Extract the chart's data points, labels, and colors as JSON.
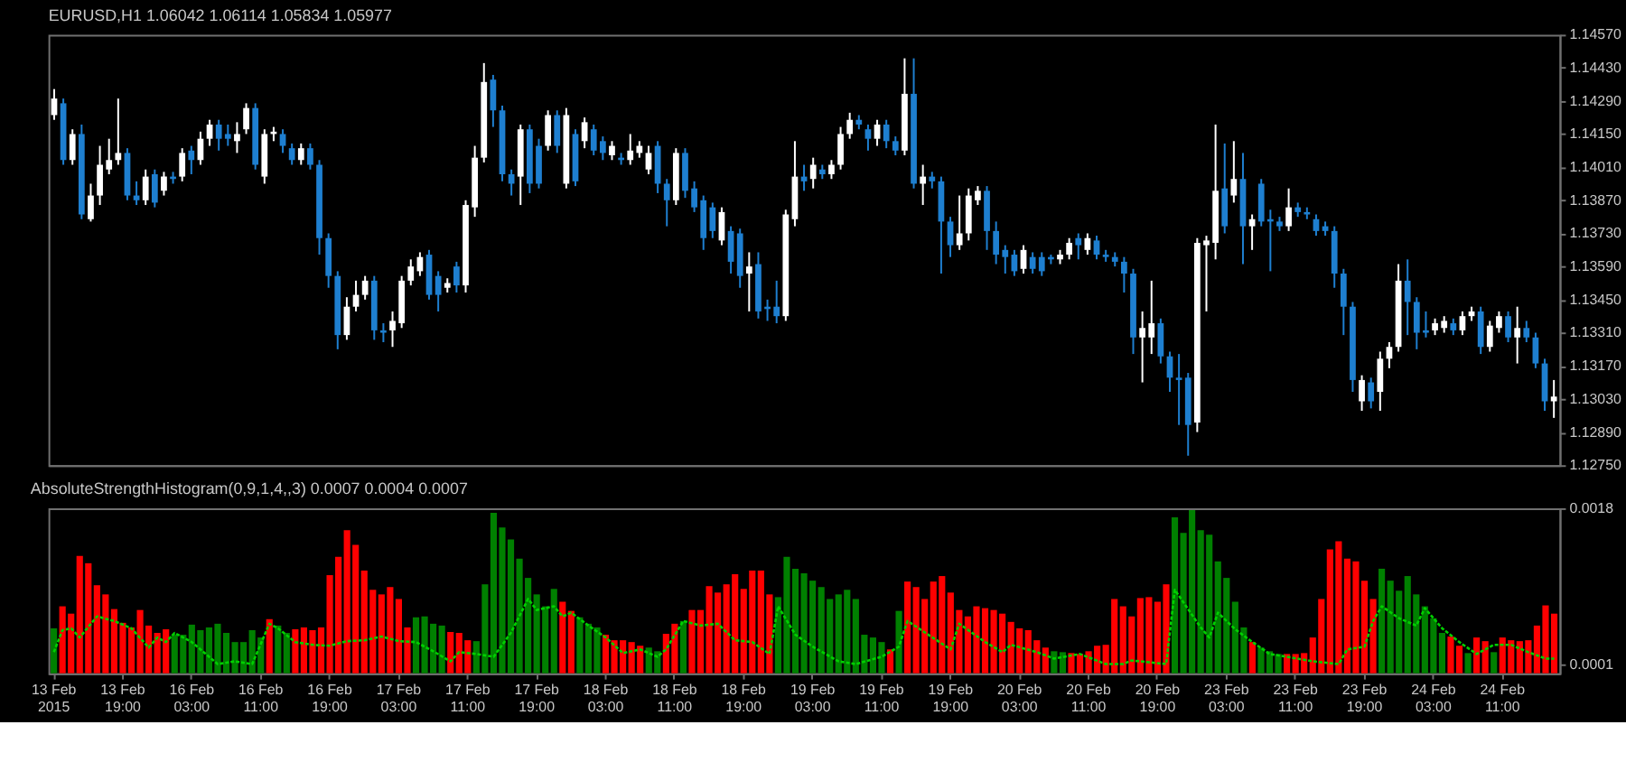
{
  "chart_data": [
    {
      "type": "candlestick",
      "title": "EURUSD,H1  1.06042 1.06114 1.05834 1.05977",
      "categories": [
        null,
        null,
        null,
        null,
        null,
        null,
        null,
        null,
        null,
        null,
        null,
        null,
        null,
        null,
        null,
        null,
        null,
        null,
        null,
        null,
        null,
        null,
        null,
        null,
        null,
        null,
        null,
        null,
        null,
        null,
        null,
        null,
        null,
        null,
        null,
        null,
        null,
        null,
        null,
        null,
        null,
        null,
        null,
        null,
        null,
        null,
        null,
        null,
        null,
        null,
        null,
        null,
        null,
        null,
        null,
        null,
        null,
        null,
        null,
        null,
        null,
        null,
        null,
        null,
        null,
        null,
        null,
        null,
        null,
        null,
        null,
        null,
        null,
        null,
        null,
        null,
        null,
        null,
        null,
        null,
        null,
        null,
        null,
        null,
        null,
        null,
        null,
        null,
        null,
        null,
        null,
        null,
        null,
        null,
        null,
        null,
        null,
        null,
        null,
        null,
        null,
        null,
        null,
        null,
        null,
        null,
        null,
        null,
        null,
        null,
        null,
        null,
        null,
        null,
        null,
        null,
        null,
        null,
        null,
        null,
        null,
        null,
        null,
        null,
        null,
        null,
        null,
        null,
        null,
        null,
        null,
        null,
        null,
        null,
        null,
        null,
        null,
        null,
        null,
        null,
        null,
        null,
        null,
        null,
        null,
        null,
        null,
        null,
        null,
        null,
        null,
        null,
        null,
        null,
        null,
        null,
        null,
        null,
        null,
        null,
        null,
        null,
        null,
        null,
        null
      ],
      "ohlc": [
        [
          1.1423,
          1.1434,
          1.1421,
          1.143
        ],
        [
          1.1428,
          1.143,
          1.1402,
          1.1404
        ],
        [
          1.1404,
          1.1417,
          1.1402,
          1.1415
        ],
        [
          1.1415,
          1.1419,
          1.1379,
          1.1381
        ],
        [
          1.1379,
          1.1394,
          1.1378,
          1.1389
        ],
        [
          1.1389,
          1.141,
          1.1385,
          1.1402
        ],
        [
          1.14,
          1.1413,
          1.1398,
          1.1404
        ],
        [
          1.1404,
          1.143,
          1.1402,
          1.1407
        ],
        [
          1.1407,
          1.1409,
          1.1387,
          1.1389
        ],
        [
          1.1389,
          1.1395,
          1.1385,
          1.1387
        ],
        [
          1.1387,
          1.14,
          1.1385,
          1.1397
        ],
        [
          1.1398,
          1.14,
          1.1384,
          1.1386
        ],
        [
          1.1391,
          1.1399,
          1.1389,
          1.1397
        ],
        [
          1.1397,
          1.1399,
          1.1394,
          1.1396
        ],
        [
          1.1397,
          1.1409,
          1.1395,
          1.1407
        ],
        [
          1.1408,
          1.141,
          1.1398,
          1.1404
        ],
        [
          1.1404,
          1.1416,
          1.1402,
          1.1413
        ],
        [
          1.1413,
          1.1421,
          1.141,
          1.1419
        ],
        [
          1.1419,
          1.1421,
          1.1408,
          1.1413
        ],
        [
          1.1415,
          1.1419,
          1.141,
          1.1413
        ],
        [
          1.1412,
          1.142,
          1.1407,
          1.1415
        ],
        [
          1.1417,
          1.1428,
          1.1415,
          1.1426
        ],
        [
          1.1426,
          1.1428,
          1.14,
          1.1402
        ],
        [
          1.1397,
          1.1417,
          1.1394,
          1.1415
        ],
        [
          1.1415,
          1.1418,
          1.1412,
          1.1416
        ],
        [
          1.1415,
          1.1417,
          1.1407,
          1.141
        ],
        [
          1.1409,
          1.1411,
          1.1402,
          1.1404
        ],
        [
          1.1404,
          1.1411,
          1.1402,
          1.1409
        ],
        [
          1.1409,
          1.1411,
          1.14,
          1.1402
        ],
        [
          1.1402,
          1.1404,
          1.1364,
          1.1371
        ],
        [
          1.1371,
          1.1373,
          1.135,
          1.1355
        ],
        [
          1.1355,
          1.1357,
          1.1324,
          1.133
        ],
        [
          1.133,
          1.1346,
          1.1328,
          1.1342
        ],
        [
          1.1342,
          1.1353,
          1.134,
          1.1347
        ],
        [
          1.1347,
          1.1355,
          1.1345,
          1.1353
        ],
        [
          1.1353,
          1.1355,
          1.1328,
          1.1332
        ],
        [
          1.1332,
          1.1335,
          1.1327,
          1.1331
        ],
        [
          1.1332,
          1.134,
          1.1325,
          1.1336
        ],
        [
          1.1335,
          1.1355,
          1.1333,
          1.1353
        ],
        [
          1.1353,
          1.1362,
          1.1351,
          1.1359
        ],
        [
          1.1357,
          1.1365,
          1.1355,
          1.1363
        ],
        [
          1.1364,
          1.1366,
          1.1345,
          1.1347
        ],
        [
          1.1355,
          1.1357,
          1.134,
          1.1347
        ],
        [
          1.135,
          1.1354,
          1.1348,
          1.1352
        ],
        [
          1.1359,
          1.1361,
          1.1348,
          1.1351
        ],
        [
          1.1351,
          1.1387,
          1.1348,
          1.1385
        ],
        [
          1.1384,
          1.141,
          1.138,
          1.1405
        ],
        [
          1.1405,
          1.1445,
          1.1403,
          1.1437
        ],
        [
          1.1438,
          1.144,
          1.1418,
          1.1425
        ],
        [
          1.1425,
          1.1427,
          1.1395,
          1.1398
        ],
        [
          1.1398,
          1.14,
          1.1389,
          1.1394
        ],
        [
          1.1397,
          1.1419,
          1.1385,
          1.1417
        ],
        [
          1.1417,
          1.1419,
          1.139,
          1.1394
        ],
        [
          1.141,
          1.1413,
          1.1392,
          1.1394
        ],
        [
          1.141,
          1.1425,
          1.1408,
          1.1423
        ],
        [
          1.1423,
          1.1425,
          1.1407,
          1.141
        ],
        [
          1.1394,
          1.1426,
          1.1392,
          1.1423
        ],
        [
          1.1415,
          1.1417,
          1.1393,
          1.1395
        ],
        [
          1.1412,
          1.1422,
          1.1409,
          1.142
        ],
        [
          1.1417,
          1.1419,
          1.1406,
          1.1408
        ],
        [
          1.1412,
          1.1414,
          1.1404,
          1.1407
        ],
        [
          1.1406,
          1.1412,
          1.1404,
          1.141
        ],
        [
          1.1405,
          1.1407,
          1.1402,
          1.1404
        ],
        [
          1.1404,
          1.1415,
          1.1402,
          1.1408
        ],
        [
          1.1407,
          1.1412,
          1.1405,
          1.141
        ],
        [
          1.14,
          1.141,
          1.1398,
          1.1407
        ],
        [
          1.141,
          1.1412,
          1.139,
          1.1394
        ],
        [
          1.1394,
          1.1396,
          1.1376,
          1.1387
        ],
        [
          1.1387,
          1.1409,
          1.1385,
          1.1407
        ],
        [
          1.1407,
          1.1409,
          1.1388,
          1.1391
        ],
        [
          1.1392,
          1.1395,
          1.1382,
          1.1384
        ],
        [
          1.1387,
          1.1389,
          1.1366,
          1.1371
        ],
        [
          1.1384,
          1.1386,
          1.1371,
          1.1374
        ],
        [
          1.137,
          1.1384,
          1.1368,
          1.1382
        ],
        [
          1.1374,
          1.1376,
          1.1356,
          1.1361
        ],
        [
          1.1373,
          1.1375,
          1.135,
          1.1355
        ],
        [
          1.1356,
          1.1365,
          1.134,
          1.1359
        ],
        [
          1.136,
          1.1365,
          1.1337,
          1.134
        ],
        [
          1.1342,
          1.1345,
          1.1336,
          1.1341
        ],
        [
          1.1342,
          1.1353,
          1.1335,
          1.1338
        ],
        [
          1.1338,
          1.1383,
          1.1336,
          1.1381
        ],
        [
          1.1379,
          1.1412,
          1.1376,
          1.1397
        ],
        [
          1.1397,
          1.1402,
          1.1391,
          1.1395
        ],
        [
          1.1396,
          1.1405,
          1.1392,
          1.1402
        ],
        [
          1.14,
          1.1402,
          1.1396,
          1.1398
        ],
        [
          1.1398,
          1.1404,
          1.1396,
          1.1402
        ],
        [
          1.1402,
          1.1418,
          1.14,
          1.1415
        ],
        [
          1.1415,
          1.1424,
          1.1413,
          1.1421
        ],
        [
          1.1421,
          1.1423,
          1.1417,
          1.1419
        ],
        [
          1.1417,
          1.1419,
          1.1408,
          1.1413
        ],
        [
          1.1413,
          1.1421,
          1.141,
          1.1419
        ],
        [
          1.1419,
          1.1421,
          1.1409,
          1.1412
        ],
        [
          1.1412,
          1.1414,
          1.1406,
          1.1408
        ],
        [
          1.1408,
          1.1447,
          1.1406,
          1.1432
        ],
        [
          1.1432,
          1.1447,
          1.1392,
          1.1394
        ],
        [
          1.1394,
          1.1402,
          1.1385,
          1.1397
        ],
        [
          1.1397,
          1.1399,
          1.1392,
          1.1395
        ],
        [
          1.1395,
          1.1397,
          1.1356,
          1.1378
        ],
        [
          1.1378,
          1.138,
          1.1363,
          1.1368
        ],
        [
          1.1368,
          1.1389,
          1.1366,
          1.1373
        ],
        [
          1.1373,
          1.1392,
          1.137,
          1.1389
        ],
        [
          1.1387,
          1.1393,
          1.1385,
          1.1391
        ],
        [
          1.1391,
          1.1393,
          1.1366,
          1.1374
        ],
        [
          1.1374,
          1.1378,
          1.136,
          1.1364
        ],
        [
          1.1366,
          1.1368,
          1.1356,
          1.1363
        ],
        [
          1.1364,
          1.1366,
          1.1355,
          1.1357
        ],
        [
          1.1358,
          1.1368,
          1.1356,
          1.1366
        ],
        [
          1.1363,
          1.1365,
          1.1356,
          1.1358
        ],
        [
          1.1363,
          1.1365,
          1.1355,
          1.1357
        ],
        [
          1.1363,
          1.1364,
          1.136,
          1.1362
        ],
        [
          1.1362,
          1.1366,
          1.136,
          1.1364
        ],
        [
          1.1364,
          1.1371,
          1.1362,
          1.1369
        ],
        [
          1.1371,
          1.1373,
          1.1362,
          1.1368
        ],
        [
          1.1366,
          1.1373,
          1.1364,
          1.1371
        ],
        [
          1.137,
          1.1372,
          1.1362,
          1.1364
        ],
        [
          1.1364,
          1.1366,
          1.1361,
          1.1363
        ],
        [
          1.1363,
          1.1365,
          1.1359,
          1.1361
        ],
        [
          1.1361,
          1.1363,
          1.1348,
          1.1356
        ],
        [
          1.1356,
          1.1358,
          1.1322,
          1.1329
        ],
        [
          1.1329,
          1.134,
          1.131,
          1.1333
        ],
        [
          1.1329,
          1.1353,
          1.1322,
          1.1335
        ],
        [
          1.1335,
          1.1337,
          1.1318,
          1.1321
        ],
        [
          1.1321,
          1.1323,
          1.1306,
          1.1312
        ],
        [
          1.1312,
          1.1322,
          1.1292,
          1.1311
        ],
        [
          1.1312,
          1.1314,
          1.1279,
          1.1292
        ],
        [
          1.1293,
          1.1371,
          1.1289,
          1.1369
        ],
        [
          1.1368,
          1.1372,
          1.134,
          1.137
        ],
        [
          1.1369,
          1.1419,
          1.1362,
          1.1391
        ],
        [
          1.1392,
          1.1411,
          1.1373,
          1.1376
        ],
        [
          1.1389,
          1.1412,
          1.1386,
          1.1396
        ],
        [
          1.1396,
          1.1407,
          1.136,
          1.1376
        ],
        [
          1.1376,
          1.1381,
          1.1366,
          1.1379
        ],
        [
          1.1394,
          1.1396,
          1.1376,
          1.1378
        ],
        [
          1.1379,
          1.1383,
          1.1357,
          1.1378
        ],
        [
          1.1378,
          1.138,
          1.1374,
          1.1376
        ],
        [
          1.1376,
          1.1392,
          1.1374,
          1.1384
        ],
        [
          1.1384,
          1.1386,
          1.138,
          1.1382
        ],
        [
          1.1382,
          1.1384,
          1.1379,
          1.1381
        ],
        [
          1.1379,
          1.1381,
          1.1372,
          1.1374
        ],
        [
          1.1376,
          1.1378,
          1.1372,
          1.1374
        ],
        [
          1.1374,
          1.1376,
          1.135,
          1.1356
        ],
        [
          1.1356,
          1.1358,
          1.133,
          1.1342
        ],
        [
          1.1342,
          1.1344,
          1.1306,
          1.1311
        ],
        [
          1.1302,
          1.1313,
          1.1298,
          1.1311
        ],
        [
          1.131,
          1.1312,
          1.1299,
          1.1302
        ],
        [
          1.1306,
          1.1323,
          1.1298,
          1.132
        ],
        [
          1.132,
          1.1327,
          1.1316,
          1.1325
        ],
        [
          1.1325,
          1.136,
          1.1323,
          1.1353
        ],
        [
          1.1353,
          1.1362,
          1.133,
          1.1344
        ],
        [
          1.1344,
          1.1346,
          1.1324,
          1.1331
        ],
        [
          1.1332,
          1.134,
          1.1329,
          1.1331
        ],
        [
          1.1332,
          1.1337,
          1.133,
          1.1335
        ],
        [
          1.1333,
          1.1338,
          1.1331,
          1.1336
        ],
        [
          1.1335,
          1.1337,
          1.133,
          1.1332
        ],
        [
          1.1332,
          1.134,
          1.133,
          1.1338
        ],
        [
          1.1338,
          1.1342,
          1.1336,
          1.134
        ],
        [
          1.134,
          1.1342,
          1.1322,
          1.1325
        ],
        [
          1.1325,
          1.1336,
          1.1323,
          1.1334
        ],
        [
          1.1333,
          1.134,
          1.1331,
          1.1338
        ],
        [
          1.1338,
          1.134,
          1.1327,
          1.1329
        ],
        [
          1.1329,
          1.1342,
          1.1318,
          1.1333
        ],
        [
          1.1333,
          1.1336,
          1.1327,
          1.1329
        ],
        [
          1.1329,
          1.1331,
          1.1316,
          1.1318
        ],
        [
          1.1318,
          1.132,
          1.1298,
          1.1302
        ],
        [
          1.1302,
          1.1311,
          1.1295,
          1.1304
        ]
      ],
      "colors": [
        "#ffffff",
        "#1e7fd0",
        "#ffffff",
        "#1e7fd0",
        "#ffffff",
        "#ffffff",
        "#ffffff",
        "#ffffff",
        "#1e7fd0",
        "#1e7fd0",
        "#ffffff",
        "#1e7fd0",
        "#ffffff",
        "#1e7fd0",
        "#ffffff",
        "#1e7fd0",
        "#ffffff",
        "#ffffff",
        "#1e7fd0",
        "#1e7fd0",
        "#ffffff",
        "#ffffff",
        "#1e7fd0",
        "#ffffff",
        "#ffffff",
        "#1e7fd0",
        "#1e7fd0",
        "#ffffff",
        "#1e7fd0",
        "#1e7fd0",
        "#1e7fd0",
        "#1e7fd0",
        "#ffffff",
        "#ffffff",
        "#ffffff",
        "#1e7fd0",
        "#1e7fd0",
        "#ffffff",
        "#ffffff",
        "#ffffff",
        "#ffffff",
        "#1e7fd0",
        "#1e7fd0",
        "#ffffff",
        "#1e7fd0",
        "#ffffff",
        "#ffffff",
        "#ffffff",
        "#1e7fd0",
        "#1e7fd0",
        "#1e7fd0",
        "#ffffff",
        "#1e7fd0",
        "#1e7fd0",
        "#ffffff",
        "#1e7fd0",
        "#ffffff",
        "#1e7fd0",
        "#ffffff",
        "#1e7fd0",
        "#1e7fd0",
        "#ffffff",
        "#1e7fd0",
        "#ffffff",
        "#ffffff",
        "#ffffff",
        "#1e7fd0",
        "#1e7fd0",
        "#ffffff",
        "#1e7fd0",
        "#1e7fd0",
        "#1e7fd0",
        "#1e7fd0",
        "#ffffff",
        "#1e7fd0",
        "#1e7fd0",
        "#ffffff",
        "#1e7fd0",
        "#1e7fd0",
        "#1e7fd0",
        "#ffffff",
        "#ffffff",
        "#1e7fd0",
        "#ffffff",
        "#1e7fd0",
        "#ffffff",
        "#ffffff",
        "#ffffff",
        "#1e7fd0",
        "#1e7fd0",
        "#ffffff",
        "#1e7fd0",
        "#1e7fd0",
        "#ffffff",
        "#1e7fd0",
        "#ffffff",
        "#1e7fd0",
        "#1e7fd0",
        "#1e7fd0",
        "#ffffff",
        "#ffffff",
        "#ffffff",
        "#1e7fd0",
        "#1e7fd0",
        "#1e7fd0",
        "#1e7fd0",
        "#ffffff",
        "#1e7fd0",
        "#1e7fd0",
        "#1e7fd0",
        "#ffffff",
        "#ffffff",
        "#1e7fd0",
        "#ffffff",
        "#1e7fd0",
        "#1e7fd0",
        "#1e7fd0",
        "#1e7fd0",
        "#1e7fd0",
        "#ffffff",
        "#ffffff",
        "#1e7fd0",
        "#1e7fd0",
        "#1e7fd0",
        "#1e7fd0",
        "#ffffff",
        "#ffffff",
        "#ffffff",
        "#1e7fd0",
        "#ffffff",
        "#1e7fd0",
        "#ffffff",
        "#1e7fd0",
        "#1e7fd0",
        "#1e7fd0",
        "#ffffff",
        "#1e7fd0",
        "#1e7fd0",
        "#1e7fd0",
        "#1e7fd0",
        "#1e7fd0",
        "#1e7fd0",
        "#1e7fd0",
        "#ffffff",
        "#1e7fd0",
        "#ffffff",
        "#ffffff",
        "#ffffff",
        "#1e7fd0",
        "#1e7fd0",
        "#1e7fd0",
        "#ffffff",
        "#ffffff",
        "#1e7fd0",
        "#ffffff",
        "#ffffff",
        "#1e7fd0",
        "#ffffff",
        "#ffffff",
        "#1e7fd0",
        "#ffffff",
        "#1e7fd0",
        "#1e7fd0",
        "#1e7fd0",
        "#ffffff"
      ],
      "ylim": [
        1.1275,
        1.1457
      ],
      "yticks": [
        {
          "value": 1.1457,
          "label": "1.14570"
        },
        {
          "value": 1.1443,
          "label": "1.14430"
        },
        {
          "value": 1.1429,
          "label": "1.14290"
        },
        {
          "value": 1.1415,
          "label": "1.14150"
        },
        {
          "value": 1.1401,
          "label": "1.14010"
        },
        {
          "value": 1.1387,
          "label": "1.13870"
        },
        {
          "value": 1.1373,
          "label": "1.13730"
        },
        {
          "value": 1.1359,
          "label": "1.13590"
        },
        {
          "value": 1.1345,
          "label": "1.13450"
        },
        {
          "value": 1.1331,
          "label": "1.13310"
        },
        {
          "value": 1.1317,
          "label": "1.13170"
        },
        {
          "value": 1.1303,
          "label": "1.13030"
        },
        {
          "value": 1.1289,
          "label": "1.12890"
        },
        {
          "value": 1.1275,
          "label": "1.12750"
        }
      ],
      "tick_labels": "y"
    },
    {
      "type": "bar",
      "title": "AbsoluteStrengthHistogram(0,9,1,4,,3) 0.0007 0.0004 0.0007",
      "categories": [
        "13 Feb 2015",
        null,
        null,
        null,
        null,
        null,
        null,
        null,
        "13 Feb 19:00",
        null,
        null,
        null,
        null,
        null,
        null,
        null,
        "16 Feb 03:00",
        null,
        null,
        null,
        null,
        null,
        null,
        null,
        "16 Feb 11:00",
        null,
        null,
        null,
        null,
        null,
        null,
        null,
        "16 Feb 19:00",
        null,
        null,
        null,
        null,
        null,
        null,
        null,
        "17 Feb 03:00",
        null,
        null,
        null,
        null,
        null,
        null,
        null,
        "17 Feb 11:00",
        null,
        null,
        null,
        null,
        null,
        null,
        null,
        "17 Feb 19:00",
        null,
        null,
        null,
        null,
        null,
        null,
        null,
        "18 Feb 03:00",
        null,
        null,
        null,
        null,
        null,
        null,
        null,
        "18 Feb 11:00",
        null,
        null,
        null,
        null,
        null,
        null,
        null,
        "18 Feb 19:00",
        null,
        null,
        null,
        null,
        null,
        null,
        null,
        "19 Feb 03:00",
        null,
        null,
        null,
        null,
        null,
        null,
        null,
        "19 Feb 11:00",
        null,
        null,
        null,
        null,
        null,
        null,
        null,
        "19 Feb 19:00",
        null,
        null,
        null,
        null,
        null,
        null,
        null,
        "20 Feb 03:00",
        null,
        null,
        null,
        null,
        null,
        null,
        null,
        "20 Feb 11:00",
        null,
        null,
        null,
        null,
        null,
        null,
        null,
        "20 Feb 19:00",
        null,
        null,
        null,
        null,
        null,
        null,
        null,
        "23 Feb 03:00",
        null,
        null,
        null,
        null,
        null,
        null,
        null,
        "23 Feb 11:00",
        null,
        null,
        null,
        null,
        null,
        null,
        null,
        "23 Feb 19:00",
        null,
        null,
        null,
        null,
        null,
        null,
        null,
        "24 Feb 03:00",
        null,
        null,
        null,
        null,
        null,
        null,
        null,
        "24 Feb 11:00",
        null,
        null,
        null,
        null,
        null,
        null
      ],
      "series": [
        {
          "type": "bar",
          "values": [
            0.00049,
            0.00073,
            0.00065,
            0.00128,
            0.0012,
            0.00096,
            0.00086,
            0.0007,
            0.00055,
            0.0005,
            0.00069,
            0.00052,
            0.00044,
            0.00048,
            0.00042,
            0.00042,
            0.00053,
            0.00047,
            0.0005,
            0.00054,
            0.00044,
            0.00034,
            0.00034,
            0.00047,
            0.00039,
            0.00059,
            0.00052,
            0.00044,
            0.00048,
            0.0005,
            0.00047,
            0.0005,
            0.00107,
            0.00127,
            0.00156,
            0.0014,
            0.00112,
            0.00091,
            0.00086,
            0.00094,
            0.00081,
            0.0005,
            0.00061,
            0.00062,
            0.00054,
            0.00052,
            0.00045,
            0.00044,
            0.00036,
            0.00035,
            0.00097,
            0.00175,
            0.00159,
            0.00146,
            0.00125,
            0.00104,
            0.00086,
            0.00073,
            0.00092,
            0.00078,
            0.00068,
            0.00061,
            0.00054,
            0.0005,
            0.00042,
            0.00036,
            0.00036,
            0.00034,
            0.0003,
            0.00028,
            0.00024,
            0.00043,
            0.00054,
            0.00057,
            0.00069,
            0.00069,
            0.00095,
            0.00088,
            0.00097,
            0.00108,
            0.00092,
            0.00112,
            0.00112,
            0.00086,
            0.00083,
            0.00127,
            0.00114,
            0.00109,
            0.00101,
            0.00094,
            0.00081,
            0.00086,
            0.00091,
            0.00081,
            0.00042,
            0.00039,
            0.00034,
            0.00026,
            0.00068,
            0.001,
            0.00094,
            0.00081,
            0.001,
            0.00106,
            0.00088,
            0.00069,
            0.00062,
            0.00073,
            0.00071,
            0.00069,
            0.00065,
            0.00056,
            0.00049,
            0.00047,
            0.00036,
            0.00028,
            0.00024,
            0.00023,
            0.00022,
            0.00021,
            0.00024,
            0.0003,
            0.00031,
            0.00081,
            0.00073,
            0.00062,
            0.00082,
            0.00083,
            0.00078,
            0.00097,
            0.0017,
            0.00153,
            0.00178,
            0.00156,
            0.00151,
            0.00122,
            0.00104,
            0.00078,
            0.0005,
            0.00034,
            0.00028,
            0.00024,
            0.00021,
            0.00021,
            0.00021,
            0.00022,
            0.00039,
            0.00081,
            0.00135,
            0.00144,
            0.00125,
            0.00122,
            0.00101,
            0.00081,
            0.00114,
            0.00101,
            0.0009,
            0.00106,
            0.00086,
            0.00073,
            0.0006,
            0.00044,
            0.0004,
            0.0003,
            0.00022,
            0.00039,
            0.00035,
            0.00023,
            0.00039,
            0.00036,
            0.00035,
            0.00036,
            0.00052,
            0.00074,
            0.00065
          ],
          "colors": [
            "#008000",
            "#ff0000",
            "#ff0000",
            "#ff0000",
            "#ff0000",
            "#ff0000",
            "#ff0000",
            "#ff0000",
            "#ff0000",
            "#ff0000",
            "#ff0000",
            "#ff0000",
            "#ff0000",
            "#ff0000",
            "#008000",
            "#008000",
            "#008000",
            "#008000",
            "#008000",
            "#008000",
            "#008000",
            "#008000",
            "#008000",
            "#008000",
            "#008000",
            "#ff0000",
            "#008000",
            "#008000",
            "#ff0000",
            "#ff0000",
            "#ff0000",
            "#ff0000",
            "#ff0000",
            "#ff0000",
            "#ff0000",
            "#ff0000",
            "#ff0000",
            "#ff0000",
            "#ff0000",
            "#ff0000",
            "#ff0000",
            "#ff0000",
            "#008000",
            "#008000",
            "#008000",
            "#008000",
            "#ff0000",
            "#ff0000",
            "#ff0000",
            "#008000",
            "#008000",
            "#008000",
            "#008000",
            "#008000",
            "#008000",
            "#008000",
            "#008000",
            "#008000",
            "#008000",
            "#ff0000",
            "#ff0000",
            "#008000",
            "#008000",
            "#008000",
            "#ff0000",
            "#ff0000",
            "#ff0000",
            "#ff0000",
            "#ff0000",
            "#008000",
            "#008000",
            "#ff0000",
            "#ff0000",
            "#008000",
            "#ff0000",
            "#ff0000",
            "#ff0000",
            "#ff0000",
            "#ff0000",
            "#ff0000",
            "#ff0000",
            "#ff0000",
            "#ff0000",
            "#ff0000",
            "#008000",
            "#008000",
            "#008000",
            "#008000",
            "#008000",
            "#008000",
            "#008000",
            "#008000",
            "#008000",
            "#008000",
            "#008000",
            "#008000",
            "#008000",
            "#ff0000",
            "#008000",
            "#ff0000",
            "#ff0000",
            "#ff0000",
            "#ff0000",
            "#ff0000",
            "#ff0000",
            "#ff0000",
            "#ff0000",
            "#ff0000",
            "#ff0000",
            "#ff0000",
            "#ff0000",
            "#ff0000",
            "#ff0000",
            "#ff0000",
            "#ff0000",
            "#ff0000",
            "#008000",
            "#008000",
            "#ff0000",
            "#ff0000",
            "#ff0000",
            "#ff0000",
            "#ff0000",
            "#ff0000",
            "#ff0000",
            "#ff0000",
            "#ff0000",
            "#ff0000",
            "#ff0000",
            "#ff0000",
            "#008000",
            "#008000",
            "#008000",
            "#008000",
            "#008000",
            "#008000",
            "#008000",
            "#008000",
            "#008000",
            "#ff0000",
            "#008000",
            "#008000",
            "#008000",
            "#ff0000",
            "#ff0000",
            "#ff0000",
            "#ff0000",
            "#ff0000",
            "#ff0000",
            "#ff0000",
            "#ff0000",
            "#ff0000",
            "#ff0000",
            "#ff0000",
            "#008000",
            "#008000",
            "#008000",
            "#008000",
            "#008000",
            "#008000",
            "#008000",
            "#008000",
            "#ff0000",
            "#ff0000",
            "#008000",
            "#ff0000",
            "#ff0000",
            "#008000",
            "#ff0000",
            "#ff0000",
            "#ff0000",
            "#ff0000",
            "#ff0000",
            "#ff0000",
            "#ff0000"
          ]
        },
        {
          "type": "line",
          "color": "#00d000",
          "line_style": "dotted",
          "values": [
            0.00023,
            0.00047,
            0.00049,
            0.00039,
            null,
            0.00062,
            null,
            0.00057,
            null,
            0.00049,
            null,
            0.00028,
            0.00039,
            0.00034,
            0.00044,
            null,
            0.00034,
            null,
            0.00018,
            0.0001,
            null,
            0.00013,
            null,
            0.0001,
            null,
            0.00054,
            0.00049,
            null,
            0.00034,
            null,
            0.00031,
            null,
            0.0003,
            null,
            0.00035,
            null,
            0.00036,
            null,
            0.0004,
            null,
            0.00035,
            null,
            0.00034,
            null,
            0.00024,
            null,
            0.00013,
            0.00023,
            null,
            0.00021,
            null,
            0.00018,
            null,
            0.00044,
            null,
            0.00081,
            0.00069,
            null,
            0.00073,
            0.00062,
            0.00066,
            null,
            0.00052,
            null,
            0.00039,
            null,
            0.00022,
            null,
            0.00026,
            null,
            0.00018,
            0.00026,
            null,
            0.00057,
            null,
            0.00052,
            null,
            0.00054,
            null,
            0.00036,
            null,
            0.00034,
            null,
            0.00021,
            0.00073,
            null,
            0.00042,
            null,
            0.00029,
            null,
            null,
            0.00013,
            null,
            0.0001,
            null,
            null,
            0.00018,
            null,
            0.00029,
            0.00057,
            null,
            null,
            null,
            null,
            0.00026,
            0.00054,
            null,
            null,
            0.00034,
            null,
            0.00023,
            0.00031,
            null,
            null,
            0.00023,
            null,
            0.00016,
            null,
            null,
            0.00021,
            null,
            null,
            0.0001,
            null,
            0.0001,
            0.00014,
            null,
            null,
            null,
            0.0001,
            0.00091,
            null,
            null,
            0.0005,
            0.00039,
            0.00066,
            null,
            0.00048,
            null,
            0.00034,
            null,
            0.00021,
            null,
            0.00018,
            null,
            null,
            0.00013,
            null,
            null,
            0.0001,
            0.00026,
            null,
            0.00029,
            0.00057,
            0.00073,
            null,
            0.0006,
            null,
            0.00052,
            0.00071,
            null,
            0.00049,
            null,
            0.00034,
            null,
            0.00021,
            null,
            0.00031,
            null,
            0.00031,
            null,
            0.00023,
            null,
            0.00016,
            0.00016
          ]
        }
      ],
      "ylim": [
        0,
        0.0018
      ],
      "yticks": [
        0.0001,
        0.0018
      ]
    }
  ]
}
